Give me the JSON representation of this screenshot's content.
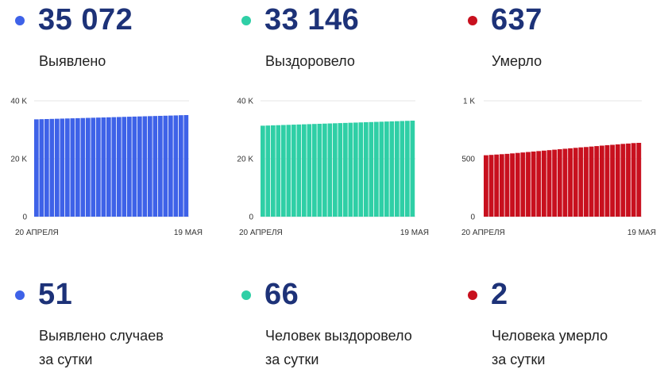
{
  "colors": {
    "blue": "#3e62e8",
    "teal": "#2fcfa6",
    "red": "#c8101e",
    "number": "#1d3278"
  },
  "cards": [
    {
      "value": "35 072",
      "label": "Выявлено",
      "color": "#3e62e8"
    },
    {
      "value": "33 146",
      "label": "Выздоровело",
      "color": "#2fcfa6"
    },
    {
      "value": "637",
      "label": "Умерло",
      "color": "#c8101e"
    }
  ],
  "daily": [
    {
      "value": "51",
      "line1": "Выявлено случаев",
      "line2": "за сутки",
      "color": "#3e62e8"
    },
    {
      "value": "66",
      "line1": "Человек выздоровело",
      "line2": "за сутки",
      "color": "#2fcfa6"
    },
    {
      "value": "2",
      "line1": "Человека умерло",
      "line2": "за сутки",
      "color": "#c8101e"
    }
  ],
  "chart_data": [
    {
      "type": "bar",
      "x_start_label": "20 АПРЕЛЯ",
      "x_end_label": "19 МАЯ",
      "yticks": [
        0,
        20000,
        40000
      ],
      "ytick_labels": [
        "0",
        "20 K",
        "40 K"
      ],
      "ylim": [
        0,
        40000
      ],
      "grid": true,
      "color": "#3e62e8",
      "values": [
        33600,
        33650,
        33700,
        33750,
        33800,
        33850,
        33900,
        33950,
        34000,
        34050,
        34100,
        34150,
        34200,
        34250,
        34300,
        34350,
        34400,
        34450,
        34500,
        34550,
        34600,
        34650,
        34700,
        34750,
        34800,
        34850,
        34900,
        34950,
        35021,
        35072
      ]
    },
    {
      "type": "bar",
      "x_start_label": "20 АПРЕЛЯ",
      "x_end_label": "19 МАЯ",
      "yticks": [
        0,
        20000,
        40000
      ],
      "ytick_labels": [
        "0",
        "20 K",
        "40 K"
      ],
      "ylim": [
        0,
        40000
      ],
      "grid": true,
      "color": "#2fcfa6",
      "values": [
        31400,
        31460,
        31520,
        31580,
        31640,
        31700,
        31760,
        31820,
        31880,
        31940,
        32000,
        32060,
        32120,
        32180,
        32240,
        32300,
        32360,
        32420,
        32480,
        32540,
        32600,
        32660,
        32720,
        32780,
        32840,
        32900,
        32960,
        33020,
        33080,
        33146
      ]
    },
    {
      "type": "bar",
      "x_start_label": "20 АПРЕЛЯ",
      "x_end_label": "19 МАЯ",
      "yticks": [
        0,
        500,
        1000
      ],
      "ytick_labels": [
        "0",
        "500",
        "1 K"
      ],
      "ylim": [
        0,
        1000
      ],
      "grid": true,
      "color": "#c8101e",
      "values": [
        530,
        533,
        536,
        539,
        542,
        546,
        550,
        554,
        558,
        562,
        566,
        570,
        574,
        578,
        582,
        586,
        590,
        594,
        598,
        601,
        605,
        609,
        613,
        617,
        620,
        624,
        628,
        631,
        635,
        637
      ]
    }
  ]
}
